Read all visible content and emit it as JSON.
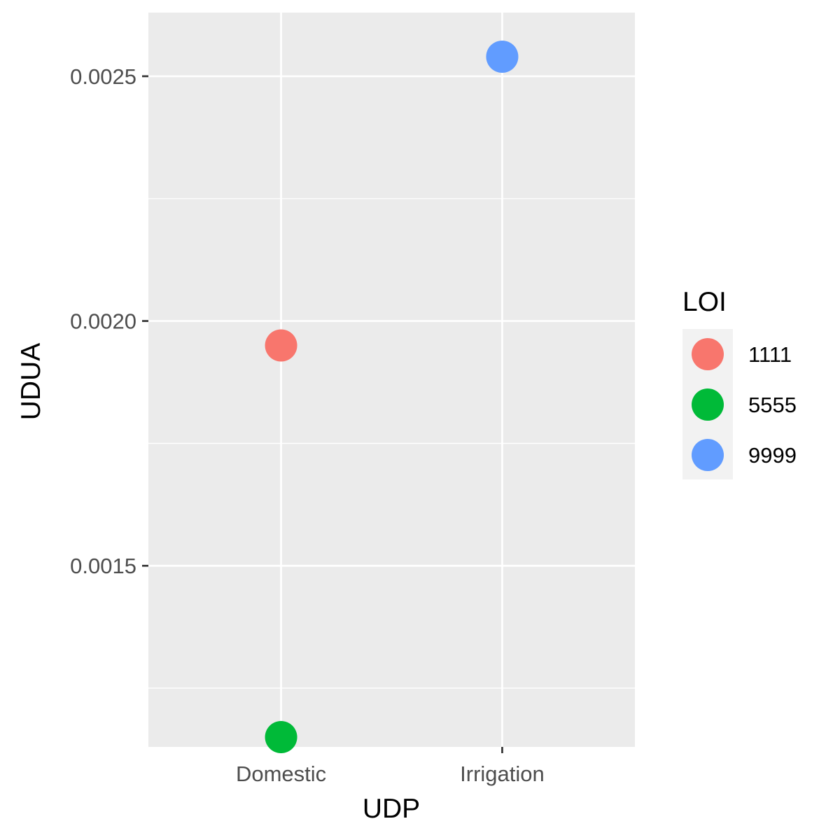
{
  "chart_data": {
    "type": "scatter",
    "title": "",
    "xlabel": "UDP",
    "ylabel": "UDUA",
    "categories": [
      "Domestic",
      "Irrigation"
    ],
    "y_ticks": [
      0.0015,
      0.002,
      0.0025
    ],
    "y_tick_labels": [
      "0.0015",
      "0.0020",
      "0.0025"
    ],
    "ylim": [
      0.00113,
      0.00263
    ],
    "grid": true,
    "legend": {
      "title": "LOI",
      "position": "right"
    },
    "series": [
      {
        "name": "1111",
        "color": "#F8766D",
        "points": [
          {
            "x": "Domestic",
            "y": 0.00195
          }
        ]
      },
      {
        "name": "5555",
        "color": "#00BA38",
        "points": [
          {
            "x": "Domestic",
            "y": 0.00115
          }
        ]
      },
      {
        "name": "9999",
        "color": "#619CFF",
        "points": [
          {
            "x": "Irrigation",
            "y": 0.00254
          }
        ]
      }
    ]
  },
  "colors": {
    "panel_background": "#EBEBEB",
    "grid_line": "#FFFFFF",
    "tick_mark": "#333333"
  }
}
